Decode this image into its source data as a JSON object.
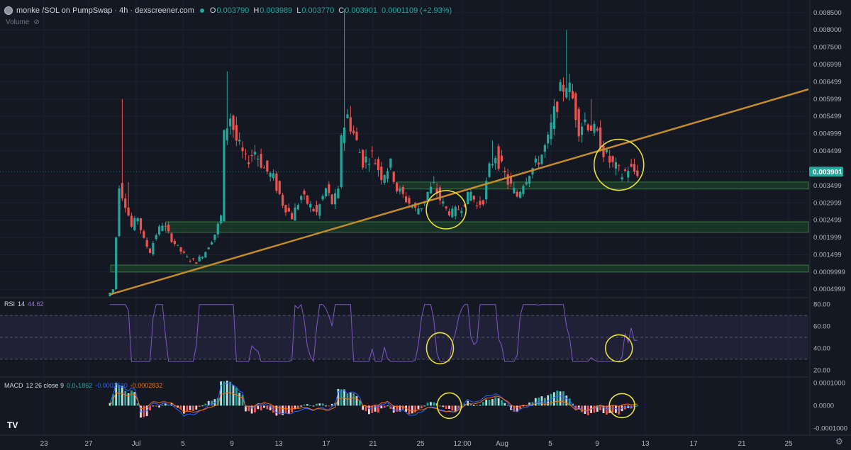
{
  "header": {
    "pair": "monke /SOL on PumpSwap · 4h · dexscreener.com",
    "o_key": "O",
    "o_val": "0.003790",
    "h_key": "H",
    "h_val": "0.003989",
    "l_key": "L",
    "l_val": "0.003770",
    "c_key": "C",
    "c_val": "0.003901",
    "change": "0.0001109 (+2.93%)"
  },
  "volume_label": "Volume",
  "rsi": {
    "name": "RSI",
    "period": "14",
    "value": "44.62"
  },
  "macd": {
    "name": "MACD",
    "params": "12 26 close 9",
    "v1": "0.0₅1862",
    "v2": "-0.0002530",
    "v3": "-0.0002832"
  },
  "colors": {
    "up": "#26a69a",
    "down": "#ef5350",
    "trend": "#c38b2a",
    "circle": "#e6e03a",
    "rsi": "#7e57c2",
    "zone": "#1f4a2c"
  },
  "chart_data": {
    "type": "candlestick",
    "title": "monke /SOL on PumpSwap · 4h · dexscreener.com",
    "last_price": "0.003901",
    "x_ticks": [
      "23",
      "27",
      "Jul",
      "5",
      "9",
      "13",
      "17",
      "21",
      "25",
      "12:00",
      "Aug",
      "5",
      "9",
      "13",
      "17",
      "21",
      "25"
    ],
    "y_ticks": [
      "0.008500",
      "0.008000",
      "0.007500",
      "0.006999",
      "0.006499",
      "0.005999",
      "0.005499",
      "0.004999",
      "0.004499",
      "0.003499",
      "0.002999",
      "0.002499",
      "0.001999",
      "0.001499",
      "0.0009999",
      "0.0004999"
    ],
    "ylim": [
      0.0003,
      0.0087
    ],
    "price_path": [
      [
        0,
        0.0003
      ],
      [
        2,
        0.0005
      ],
      [
        4,
        0.0035
      ],
      [
        6,
        0.003
      ],
      [
        8,
        0.0023
      ],
      [
        10,
        0.0026
      ],
      [
        12,
        0.0019
      ],
      [
        14,
        0.0016
      ],
      [
        16,
        0.0021
      ],
      [
        18,
        0.0024
      ],
      [
        20,
        0.0021
      ],
      [
        23,
        0.0017
      ],
      [
        26,
        0.0014
      ],
      [
        29,
        0.0013
      ],
      [
        32,
        0.0016
      ],
      [
        35,
        0.0021
      ],
      [
        37,
        0.0026
      ],
      [
        38,
        0.005
      ],
      [
        40,
        0.0055
      ],
      [
        42,
        0.0048
      ],
      [
        45,
        0.0042
      ],
      [
        48,
        0.0045
      ],
      [
        51,
        0.004
      ],
      [
        54,
        0.0037
      ],
      [
        57,
        0.003
      ],
      [
        60,
        0.0026
      ],
      [
        63,
        0.0032
      ],
      [
        66,
        0.0029
      ],
      [
        68,
        0.0027
      ],
      [
        71,
        0.0034
      ],
      [
        73,
        0.003
      ],
      [
        75,
        0.0033
      ],
      [
        76,
        0.005
      ],
      [
        78,
        0.0055
      ],
      [
        80,
        0.005
      ],
      [
        83,
        0.0042
      ],
      [
        86,
        0.0044
      ],
      [
        89,
        0.0038
      ],
      [
        92,
        0.0041
      ],
      [
        94,
        0.0034
      ],
      [
        97,
        0.0031
      ],
      [
        100,
        0.0028
      ],
      [
        102,
        0.0029
      ],
      [
        104,
        0.0033
      ],
      [
        106,
        0.0035
      ],
      [
        108,
        0.0031
      ],
      [
        110,
        0.0028
      ],
      [
        112,
        0.0027
      ],
      [
        115,
        0.0029
      ],
      [
        118,
        0.0033
      ],
      [
        120,
        0.0029
      ],
      [
        122,
        0.0031
      ],
      [
        124,
        0.004
      ],
      [
        126,
        0.0044
      ],
      [
        128,
        0.004
      ],
      [
        130,
        0.0036
      ],
      [
        133,
        0.0032
      ],
      [
        135,
        0.0036
      ],
      [
        137,
        0.0039
      ],
      [
        139,
        0.0041
      ],
      [
        141,
        0.0044
      ],
      [
        143,
        0.0048
      ],
      [
        145,
        0.0056
      ],
      [
        147,
        0.0062
      ],
      [
        149,
        0.0065
      ],
      [
        151,
        0.006
      ],
      [
        153,
        0.0052
      ],
      [
        155,
        0.0054
      ],
      [
        157,
        0.0052
      ],
      [
        159,
        0.0049
      ],
      [
        161,
        0.0045
      ],
      [
        163,
        0.0042
      ],
      [
        165,
        0.004
      ],
      [
        167,
        0.0038
      ],
      [
        169,
        0.004
      ],
      [
        171,
        0.0039
      ]
    ],
    "wick_highs": [
      [
        4,
        0.006
      ],
      [
        6,
        0.0036
      ],
      [
        38,
        0.0068
      ],
      [
        76,
        0.0086
      ],
      [
        78,
        0.0058
      ],
      [
        124,
        0.0048
      ],
      [
        148,
        0.008
      ],
      [
        156,
        0.006
      ]
    ],
    "support_zones": [
      [
        0.0034,
        0.0036,
        0.49
      ],
      [
        0.00215,
        0.00245,
        0.205
      ],
      [
        0.001,
        0.0012,
        0.137
      ]
    ],
    "trendline": {
      "x0": 0,
      "y0": 0.00035,
      "slope_per_bar": 2.62e-05
    },
    "rsi": {
      "ylim": [
        15,
        85
      ],
      "y_ticks": [
        "80.00",
        "60.00",
        "40.00",
        "20.00"
      ],
      "band": [
        30,
        70
      ],
      "mid": 50
    },
    "macd": {
      "y_ticks": [
        "0.0001000",
        "0.0000",
        "-0.0001000"
      ],
      "ylim": [
        -0.00013,
        0.00012
      ]
    },
    "annotations": [
      {
        "panel": "price",
        "bar": 109,
        "value": 0.0028,
        "rx": 28,
        "ry": 27
      },
      {
        "panel": "price",
        "bar": 165,
        "value": 0.0041,
        "rx": 35,
        "ry": 36
      },
      {
        "panel": "rsi",
        "bar": 107,
        "value": 40,
        "rx": 19,
        "ry": 22
      },
      {
        "panel": "rsi",
        "bar": 165,
        "value": 40,
        "rx": 19,
        "ry": 19
      },
      {
        "panel": "macd",
        "bar": 110,
        "value": 0.0,
        "rx": 17,
        "ry": 18
      },
      {
        "panel": "macd",
        "bar": 166,
        "value": 0.0,
        "rx": 18,
        "ry": 17
      }
    ]
  }
}
